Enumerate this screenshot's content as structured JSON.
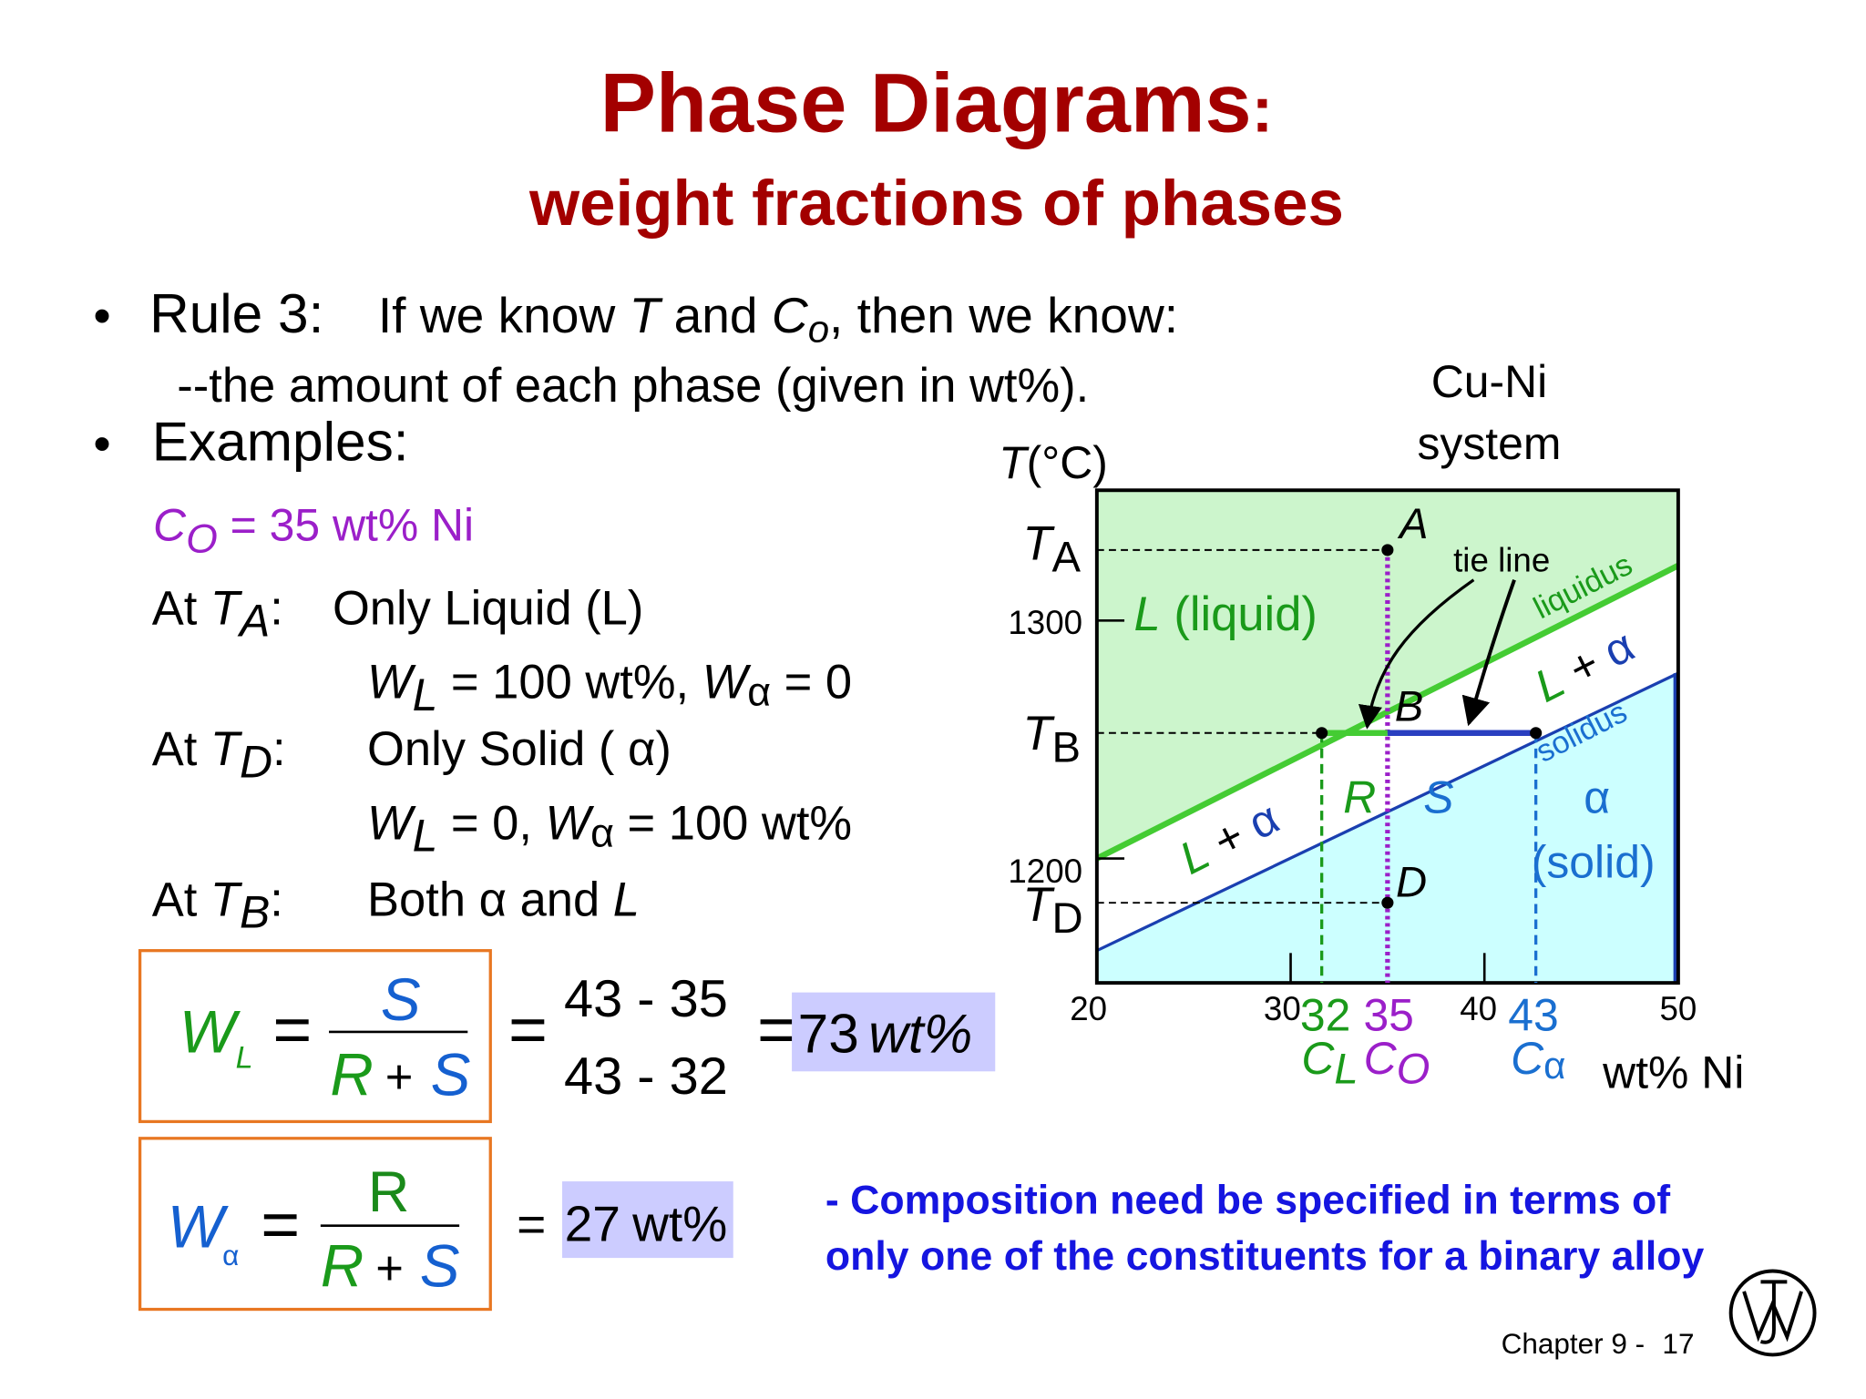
{
  "title": {
    "main": "Phase Diagrams",
    "colon": ":",
    "sub": "weight fractions of phases"
  },
  "rule": {
    "bullet": "•",
    "label": "Rule 3:",
    "parts": [
      "If we know ",
      "T",
      " and ",
      "C",
      "o",
      ", then we know:"
    ],
    "sub": "--the amount of each phase (given in wt%)."
  },
  "examples": {
    "bullet": "•",
    "label": "Examples:",
    "composition": [
      "C",
      "O",
      " = 35 wt% Ni"
    ],
    "ta": [
      "At ",
      "T",
      "A",
      ":",
      "Only Liquid (L)"
    ],
    "ta_w": [
      "W",
      "L",
      " = 100 wt%, ",
      "W",
      "α",
      " = 0"
    ],
    "td": [
      "At ",
      "T",
      "D",
      ":",
      "Only Solid ( ",
      "α",
      ")"
    ],
    "td_w": [
      "W",
      "L",
      " = 0, ",
      "W",
      "α",
      " = 100 wt%"
    ],
    "tb": [
      "At ",
      "T",
      "B",
      ":",
      "Both ",
      "α",
      " and ",
      "L"
    ]
  },
  "formula_liquid": {
    "w": "W",
    "sub": "L",
    "eq": "=",
    "num": "S",
    "den_r": "R",
    "plus": "+",
    "den_s": "S",
    "eq2": "=",
    "num2": "43 - 35",
    "den2": "43 - 32",
    "eq3": "=",
    "result": 73,
    "unit": "wt%"
  },
  "formula_alpha": {
    "w": "W",
    "sub": "α",
    "eq": "=",
    "num": "R",
    "den_r": "R",
    "plus": "+",
    "den_s": "S",
    "eq2": "=",
    "result": 27,
    "unit": "wt%"
  },
  "diagram": {
    "system": [
      "Cu-Ni",
      "system"
    ],
    "y_label": [
      "T",
      "(°C)"
    ],
    "ta": [
      "T",
      "A"
    ],
    "tb": [
      "T",
      "B"
    ],
    "td": [
      "T",
      "D"
    ],
    "yticks": [
      1300,
      1200
    ],
    "xticks": [
      20,
      30,
      40,
      50
    ],
    "c_l": 32,
    "c_o": 35,
    "c_alpha": 43,
    "c_l_label": [
      "C",
      "L"
    ],
    "c_o_label": [
      "C",
      "O"
    ],
    "c_alpha_label": [
      "C",
      "α"
    ],
    "x_label": "wt% Ni",
    "liquid": [
      "L",
      " (liquid)"
    ],
    "tie_line": "tie line",
    "liquidus": "liquidus",
    "solidus": "solidus",
    "two_phase_upper": [
      "L",
      " + ",
      "α"
    ],
    "two_phase_lower": [
      "L",
      " + ",
      "α"
    ],
    "alpha": "α",
    "solid": "(solid)",
    "points": {
      "a": "A",
      "b": "B",
      "d": "D"
    },
    "r": "R",
    "s": "S"
  },
  "note": [
    "- Composition need be specified in terms of",
    "only one of the constituents for a binary alloy"
  ],
  "footer": {
    "chapter": "Chapter 9 - ",
    "page": "17"
  }
}
